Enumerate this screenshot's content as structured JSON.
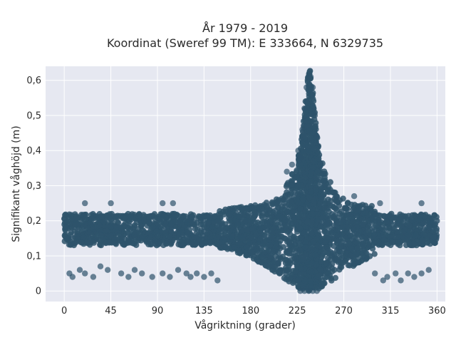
{
  "chart_data": {
    "type": "scatter",
    "title_line1": "År 1979 - 2019",
    "title_line2": "Koordinat (Sweref 99 TM): E 333664, N 6329735",
    "xlabel": "Vågriktning (grader)",
    "ylabel": "Signifikant våghöjd (m)",
    "xlim": [
      -18,
      368
    ],
    "ylim": [
      -0.03,
      0.64
    ],
    "xticks": [
      0,
      45,
      90,
      135,
      180,
      225,
      270,
      315,
      360
    ],
    "yticks": [
      0,
      0.1,
      0.2,
      0.3,
      0.4,
      0.5,
      0.6
    ],
    "ytick_labels": [
      "0",
      "0,1",
      "0,2",
      "0,3",
      "0,4",
      "0,5",
      "0,6"
    ],
    "grid": true,
    "point_color": "#2e536b",
    "background_color": "#e6e8f1",
    "grid_color": "#ffffff",
    "distribution": {
      "x_range": [
        0,
        360
      ],
      "main_band_y": [
        0.12,
        0.24
      ],
      "widest_band_x": [
        150,
        290
      ],
      "widest_band_y": [
        0.01,
        0.26
      ],
      "peak_x": 237,
      "peak_y_max": 0.61,
      "min_y": 0.0
    },
    "points": [
      [
        5,
        0.05
      ],
      [
        8,
        0.04
      ],
      [
        15,
        0.06
      ],
      [
        20,
        0.05
      ],
      [
        28,
        0.04
      ],
      [
        35,
        0.07
      ],
      [
        42,
        0.06
      ],
      [
        55,
        0.05
      ],
      [
        62,
        0.04
      ],
      [
        68,
        0.06
      ],
      [
        75,
        0.05
      ],
      [
        85,
        0.04
      ],
      [
        95,
        0.05
      ],
      [
        102,
        0.04
      ],
      [
        110,
        0.06
      ],
      [
        118,
        0.05
      ],
      [
        122,
        0.04
      ],
      [
        128,
        0.05
      ],
      [
        135,
        0.04
      ],
      [
        142,
        0.05
      ],
      [
        148,
        0.03
      ],
      [
        300,
        0.05
      ],
      [
        308,
        0.03
      ],
      [
        312,
        0.04
      ],
      [
        320,
        0.05
      ],
      [
        325,
        0.03
      ],
      [
        332,
        0.05
      ],
      [
        338,
        0.04
      ],
      [
        345,
        0.05
      ],
      [
        352,
        0.06
      ],
      [
        20,
        0.25
      ],
      [
        45,
        0.25
      ],
      [
        95,
        0.25
      ],
      [
        105,
        0.25
      ],
      [
        215,
        0.34
      ],
      [
        220,
        0.36
      ],
      [
        226,
        0.4
      ],
      [
        228,
        0.38
      ],
      [
        262,
        0.27
      ],
      [
        280,
        0.27
      ],
      [
        305,
        0.25
      ],
      [
        345,
        0.25
      ],
      [
        228,
        0.0
      ],
      [
        232,
        0.0
      ],
      [
        236,
        0.0
      ],
      [
        240,
        0.0
      ],
      [
        244,
        0.0
      ],
      [
        236,
        0.61
      ],
      [
        238,
        0.61
      ],
      [
        234,
        0.58
      ],
      [
        240,
        0.58
      ],
      [
        232,
        0.52
      ],
      [
        242,
        0.5
      ],
      [
        230,
        0.46
      ],
      [
        244,
        0.44
      ]
    ]
  }
}
